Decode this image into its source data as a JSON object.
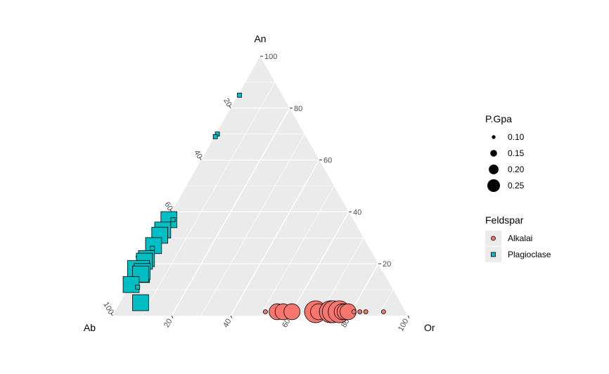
{
  "chart_data": {
    "type": "ternary-scatter",
    "vertices": {
      "top": "An",
      "left": "Ab",
      "right": "Or"
    },
    "grid": true,
    "ticks": {
      "an": [
        20,
        40,
        60,
        80,
        100
      ],
      "ab": [
        20,
        40,
        60,
        80,
        100
      ],
      "or": [
        20,
        40,
        60,
        80,
        100
      ]
    },
    "legend": {
      "placement": "right",
      "size_title": "P.Gpa",
      "size_entries": [
        {
          "label": "0.10",
          "value": 0.1
        },
        {
          "label": "0.15",
          "value": 0.15
        },
        {
          "label": "0.20",
          "value": 0.2
        },
        {
          "label": "0.25",
          "value": 0.25
        }
      ],
      "color_title": "Feldspar",
      "color_entries": [
        {
          "label": "Alkalai",
          "shape": "circle",
          "color": "#F8766D"
        },
        {
          "label": "Plagioclase",
          "shape": "square",
          "color": "#00BFC4"
        }
      ]
    },
    "series": [
      {
        "name": "Alkalai",
        "shape": "circle",
        "color": "#F8766D",
        "points": [
          {
            "an": 1.5,
            "or": 51,
            "p": 0.1
          },
          {
            "an": 1.5,
            "or": 59,
            "p": 0.1
          },
          {
            "an": 1.5,
            "or": 55,
            "p": 0.2
          },
          {
            "an": 1.5,
            "or": 57,
            "p": 0.2
          },
          {
            "an": 1.5,
            "or": 60,
            "p": 0.2
          },
          {
            "an": 1.5,
            "or": 66,
            "p": 0.1
          },
          {
            "an": 1.5,
            "or": 67,
            "p": 0.2
          },
          {
            "an": 1.5,
            "or": 68,
            "p": 0.25
          },
          {
            "an": 1.5,
            "or": 69,
            "p": 0.2
          },
          {
            "an": 1.5,
            "or": 72,
            "p": 0.2
          },
          {
            "an": 1.5,
            "or": 73,
            "p": 0.25
          },
          {
            "an": 1.5,
            "or": 74,
            "p": 0.25
          },
          {
            "an": 1.5,
            "or": 75,
            "p": 0.2
          },
          {
            "an": 1.5,
            "or": 76,
            "p": 0.25
          },
          {
            "an": 1.5,
            "or": 77,
            "p": 0.2
          },
          {
            "an": 1.5,
            "or": 78,
            "p": 0.2
          },
          {
            "an": 1.5,
            "or": 79,
            "p": 0.2
          },
          {
            "an": 1.5,
            "or": 81,
            "p": 0.1
          },
          {
            "an": 1.5,
            "or": 83,
            "p": 0.1
          },
          {
            "an": 1.5,
            "or": 85,
            "p": 0.1
          },
          {
            "an": 1.5,
            "or": 91,
            "p": 0.1
          }
        ]
      },
      {
        "name": "Plagioclase",
        "shape": "square",
        "color": "#00BFC4",
        "points": [
          {
            "an": 85,
            "or": 0.5,
            "p": 0.1
          },
          {
            "an": 70,
            "or": 0.5,
            "p": 0.1
          },
          {
            "an": 69,
            "or": 0.3,
            "p": 0.1
          },
          {
            "an": 37,
            "or": 0.6,
            "p": 0.2
          },
          {
            "an": 37,
            "or": 2,
            "p": 0.1
          },
          {
            "an": 33,
            "or": 0.5,
            "p": 0.2
          },
          {
            "an": 31,
            "or": 0.5,
            "p": 0.2
          },
          {
            "an": 27,
            "or": 0.4,
            "p": 0.2
          },
          {
            "an": 26,
            "or": 0.5,
            "p": 0.1
          },
          {
            "an": 22,
            "or": 0.5,
            "p": 0.2
          },
          {
            "an": 21,
            "or": 0.3,
            "p": 0.2
          },
          {
            "an": 17,
            "or": 0.3,
            "p": 0.25
          },
          {
            "an": 17,
            "or": 1.5,
            "p": 0.2
          },
          {
            "an": 16,
            "or": 1.5,
            "p": 0.2
          },
          {
            "an": 12,
            "or": 0.3,
            "p": 0.2
          },
          {
            "an": 11,
            "or": 3,
            "p": 0.1
          },
          {
            "an": 5,
            "or": 7,
            "p": 0.2
          }
        ]
      }
    ]
  }
}
